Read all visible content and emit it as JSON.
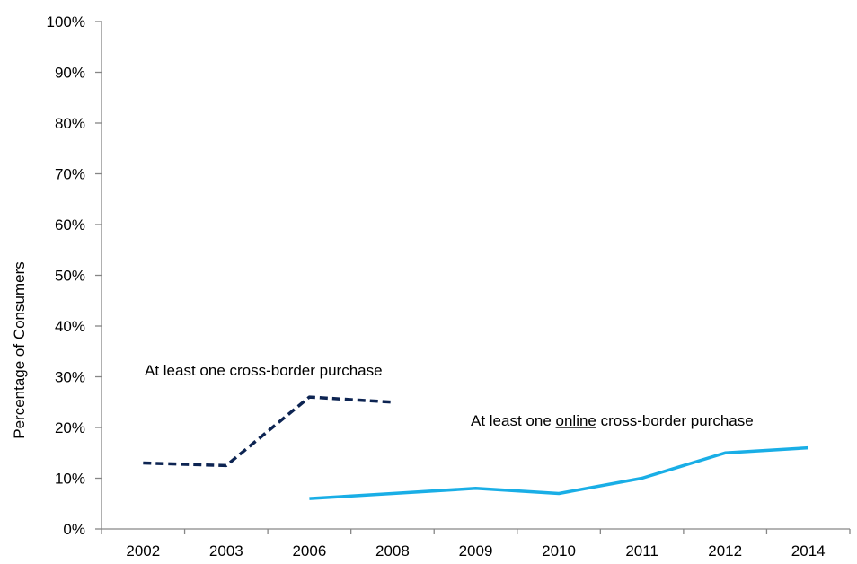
{
  "chart_data": {
    "type": "line",
    "categories": [
      "2002",
      "2003",
      "2006",
      "2008",
      "2009",
      "2010",
      "2011",
      "2012",
      "2014"
    ],
    "ylabel": "Percentage of Consumers",
    "xlabel": "",
    "ylim": [
      0,
      100
    ],
    "y_ticks": [
      "0%",
      "10%",
      "20%",
      "30%",
      "40%",
      "50%",
      "60%",
      "70%",
      "80%",
      "90%",
      "100%"
    ],
    "grid": false,
    "series": [
      {
        "name": "At least one cross-border purchase",
        "values": [
          13,
          12.5,
          26,
          25,
          null,
          null,
          null,
          null,
          null
        ],
        "color": "#0d2452",
        "style": "dashed"
      },
      {
        "name": "At least one online cross-border purchase",
        "values": [
          null,
          null,
          6,
          7,
          8,
          7,
          10,
          15,
          16
        ],
        "color": "#19aee6",
        "style": "solid"
      }
    ],
    "annotations": {
      "series1": "At least one cross-border purchase",
      "series2_prefix": "At least one ",
      "series2_underlined": "online",
      "series2_suffix": " cross-border purchase"
    }
  }
}
